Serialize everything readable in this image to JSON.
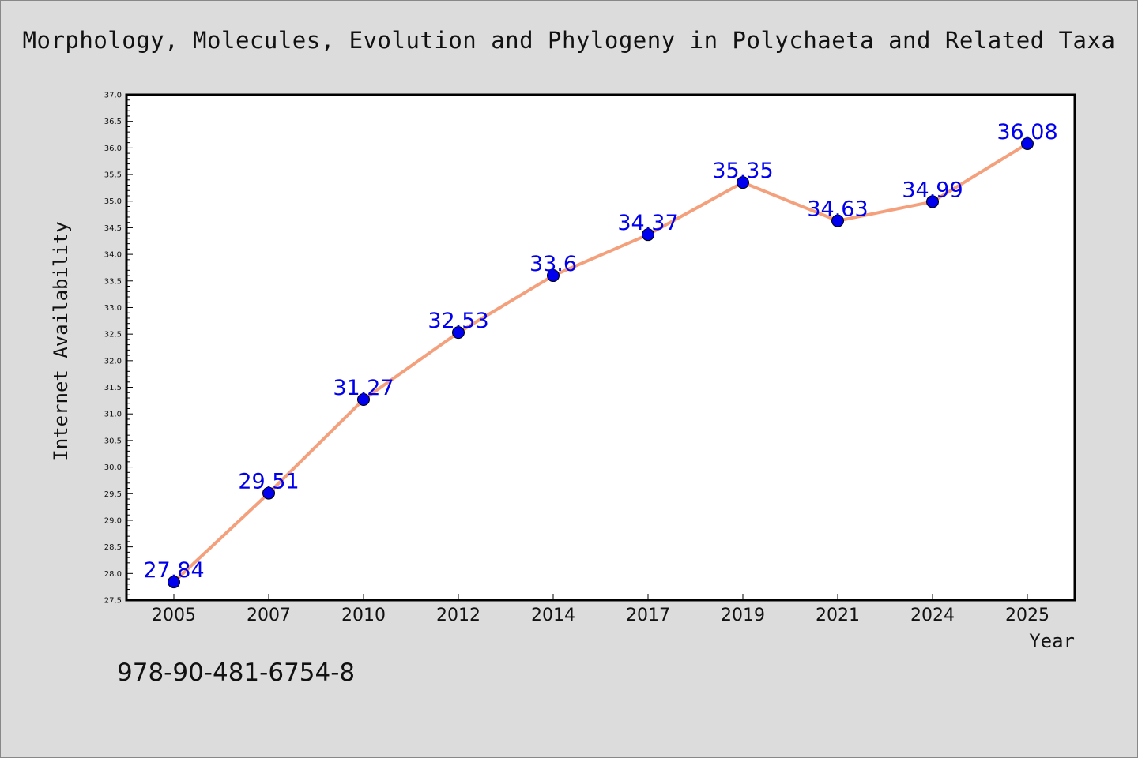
{
  "chart_data": {
    "type": "line",
    "title": "Morphology, Molecules, Evolution and Phylogeny in Polychaeta and Related Taxa",
    "xlabel": "Year",
    "ylabel": "Internet Availability",
    "categories": [
      "2005",
      "2007",
      "2010",
      "2012",
      "2014",
      "2017",
      "2019",
      "2021",
      "2024",
      "2025"
    ],
    "series": [
      {
        "values": [
          27.84,
          29.51,
          31.27,
          32.53,
          33.6,
          34.37,
          35.35,
          34.63,
          34.99,
          36.08
        ],
        "data_labels": [
          "27.84",
          "29.51",
          "31.27",
          "32.53",
          "33.6",
          "34.37",
          "35.35",
          "34.63",
          "34.99",
          "36.08"
        ]
      }
    ],
    "ylim": [
      27.5,
      37.0
    ],
    "yticks": [
      "27.5",
      "28.0",
      "28.5",
      "29.0",
      "29.5",
      "30.0",
      "30.5",
      "31.0",
      "31.5",
      "32.0",
      "32.5",
      "33.0",
      "33.5",
      "34.0",
      "34.5",
      "35.0",
      "35.5",
      "36.0",
      "36.5",
      "37.0"
    ],
    "grid": false,
    "colors": {
      "line": "#f4a07c",
      "marker": "#0000ee",
      "label": "#0000ee",
      "background": "#dcdcdc",
      "plot_area": "#ffffff"
    }
  },
  "footer": {
    "isbn": "978-90-481-6754-8"
  }
}
